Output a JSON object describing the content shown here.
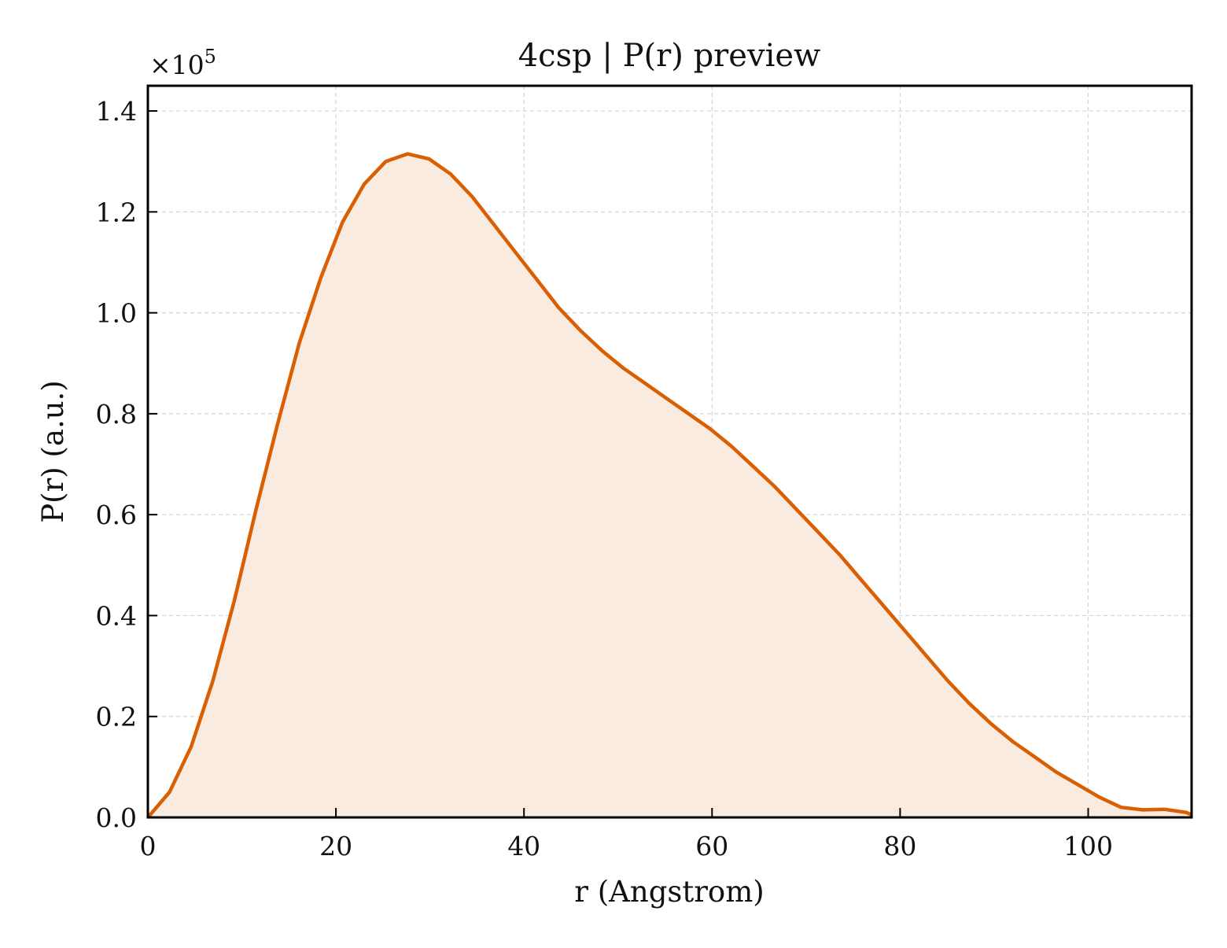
{
  "chart_data": {
    "type": "area",
    "title": "4csp | P(r) preview",
    "xlabel": "r (Angstrom)",
    "ylabel": "P(r) (a.u.)",
    "y_multiplier_label": "×10",
    "y_multiplier_exponent": "5",
    "xlim": [
      0,
      111
    ],
    "ylim": [
      0,
      1.45
    ],
    "xticks": [
      0,
      20,
      40,
      60,
      80,
      100
    ],
    "xtick_labels": [
      "0",
      "20",
      "40",
      "60",
      "80",
      "100"
    ],
    "yticks": [
      0.0,
      0.2,
      0.4,
      0.6,
      0.8,
      1.0,
      1.2,
      1.4
    ],
    "ytick_labels": [
      "0.0",
      "0.2",
      "0.4",
      "0.6",
      "0.8",
      "1.0",
      "1.2",
      "1.4"
    ],
    "grid": true,
    "line_color": "#d95f02",
    "fill_color": "#f9ebe0",
    "series": [
      {
        "x": [
          0,
          2.3,
          4.6,
          6.9,
          9.2,
          11.5,
          13.8,
          16.1,
          18.4,
          20.7,
          23.0,
          25.3,
          27.6,
          29.9,
          32.2,
          34.5,
          36.8,
          39.1,
          41.4,
          43.7,
          46.0,
          48.3,
          50.6,
          52.9,
          55.2,
          57.5,
          59.8,
          62.1,
          64.4,
          66.7,
          69.0,
          71.3,
          73.6,
          75.9,
          78.2,
          80.5,
          82.8,
          85.1,
          87.4,
          89.7,
          92.0,
          94.3,
          96.6,
          98.9,
          101.2,
          103.5,
          105.8,
          108.1,
          110.4,
          111
        ],
        "y": [
          0.0,
          0.05,
          0.14,
          0.27,
          0.43,
          0.61,
          0.78,
          0.94,
          1.07,
          1.18,
          1.255,
          1.3,
          1.315,
          1.305,
          1.275,
          1.23,
          1.175,
          1.12,
          1.065,
          1.01,
          0.965,
          0.925,
          0.89,
          0.86,
          0.83,
          0.8,
          0.77,
          0.735,
          0.695,
          0.655,
          0.61,
          0.565,
          0.52,
          0.47,
          0.42,
          0.37,
          0.32,
          0.27,
          0.225,
          0.185,
          0.15,
          0.12,
          0.09,
          0.065,
          0.04,
          0.02,
          0.015,
          0.016,
          0.01,
          0.005
        ]
      }
    ]
  }
}
